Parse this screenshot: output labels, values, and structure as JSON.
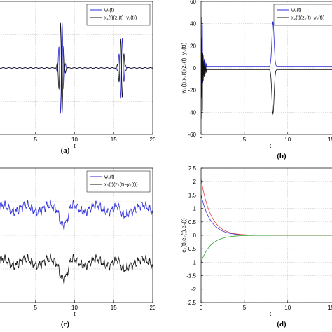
{
  "colors": {
    "blue": "#2b2bd9",
    "black": "#111111",
    "red": "#e8423a",
    "green": "#2e9e2e"
  },
  "chart_data": [
    {
      "panel": "a",
      "caption": "(a)",
      "type": "line",
      "xlabel": "t",
      "ylabel": "",
      "xlim": [
        0,
        20
      ],
      "ylim": [
        -60,
        60
      ],
      "xticks": [
        "5",
        "10",
        "15",
        "20"
      ],
      "yticks": [],
      "grid": true,
      "legend_position": "top-right",
      "series": [
        {
          "name": "w₁(t)",
          "color": "blue",
          "shape": "bursts_a",
          "sign": 1
        },
        {
          "name": "x₁(t)(z₁(t)−y₁(t))",
          "color": "black",
          "shape": "bursts_a",
          "sign": -1
        }
      ]
    },
    {
      "panel": "b",
      "caption": "(b)",
      "type": "line",
      "xlabel": "t",
      "ylabel": "w₂(t),x₂(t)(z₂(t)−y₂(t))",
      "xlim": [
        0,
        16
      ],
      "ylim": [
        -60,
        60
      ],
      "xticks": [
        "0",
        "5",
        "10",
        "15"
      ],
      "yticks": [
        "60",
        "40",
        "20",
        "0",
        "-20",
        "-40",
        "-60"
      ],
      "grid": true,
      "legend_position": "top-right",
      "series": [
        {
          "name": "w₂(t)",
          "color": "blue",
          "shape": "spikes_b",
          "sign": 1
        },
        {
          "name": "x₂(t)(z₂(t)−y₂(t))",
          "color": "black",
          "shape": "spikes_b",
          "sign": -1
        }
      ]
    },
    {
      "panel": "c",
      "caption": "(c)",
      "type": "line",
      "xlabel": "t",
      "ylabel": "",
      "xlim": [
        0,
        20
      ],
      "ylim": [
        -10,
        10
      ],
      "xticks": [
        "5",
        "10",
        "15",
        "20"
      ],
      "yticks": [],
      "grid": true,
      "legend_position": "top-right",
      "series": [
        {
          "name": "w₃(t)",
          "color": "blue",
          "shape": "noisy_c",
          "offset": 4,
          "sign": 1
        },
        {
          "name": "x₃(t)(z₃(t)−y₃(t))",
          "color": "black",
          "shape": "noisy_c",
          "offset": -4,
          "sign": 1
        }
      ]
    },
    {
      "panel": "d",
      "caption": "(d)",
      "type": "line",
      "xlabel": "t",
      "ylabel": "e₁(t),e₂(t),e₃(t)",
      "xlim": [
        0,
        16
      ],
      "ylim": [
        -2.5,
        2.5
      ],
      "xticks": [
        "0",
        "5",
        "10",
        "15"
      ],
      "yticks": [
        "2.5",
        "2",
        "1.5",
        "1",
        "0.5",
        "0",
        "-0.5",
        "-1",
        "-1.5",
        "-2",
        "-2.5"
      ],
      "grid": true,
      "series": [
        {
          "color": "blue",
          "shape": "decay",
          "initial": 1.5
        },
        {
          "color": "red",
          "shape": "decay",
          "initial": 2.1
        },
        {
          "color": "green",
          "shape": "decay",
          "initial": -1.0
        }
      ]
    }
  ]
}
